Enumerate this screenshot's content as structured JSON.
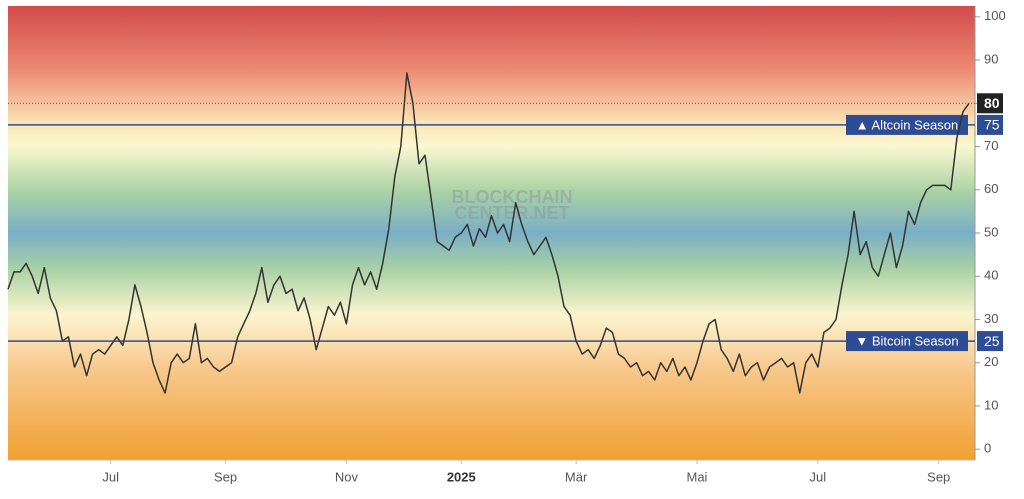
{
  "chart_data": {
    "type": "line",
    "watermark": [
      "BLOCKCHAIN",
      "CENTER.NET"
    ],
    "xlim": [
      0,
      160
    ],
    "xticks": [
      {
        "value": 17,
        "label": "Jul"
      },
      {
        "value": 36,
        "label": "Sep"
      },
      {
        "value": 56,
        "label": "Nov"
      },
      {
        "value": 75,
        "label": "2025"
      },
      {
        "value": 94,
        "label": "Mär"
      },
      {
        "value": 114,
        "label": "Mai"
      },
      {
        "value": 134,
        "label": "Jul"
      },
      {
        "value": 154,
        "label": "Sep"
      }
    ],
    "ylim": [
      -2.5,
      102.5
    ],
    "yticks": [
      0,
      10,
      20,
      30,
      40,
      50,
      60,
      70,
      80,
      90,
      100
    ],
    "color": "#333333",
    "values": [
      37,
      41,
      41,
      43,
      40,
      36,
      42,
      35,
      32,
      25,
      26,
      19,
      22,
      17,
      22,
      23,
      22,
      24,
      26,
      24,
      30,
      38,
      33,
      27,
      20,
      16,
      13,
      20,
      22,
      20,
      21,
      29,
      20,
      21,
      19,
      18,
      19,
      20,
      26,
      29,
      32,
      36,
      42,
      34,
      38,
      40,
      36,
      37,
      32,
      35,
      30,
      23,
      28,
      33,
      31,
      34,
      29,
      38,
      42,
      38,
      41,
      37,
      43,
      51,
      63,
      70,
      87,
      80,
      66,
      68,
      58,
      48,
      47,
      46,
      49,
      50,
      52,
      47,
      51,
      49,
      54,
      50,
      52,
      48,
      57,
      52,
      48,
      45,
      47,
      49,
      45,
      40,
      33,
      31,
      25,
      22,
      23,
      21,
      24,
      28,
      27,
      22,
      21,
      19,
      20,
      17,
      18,
      16,
      20,
      18,
      21,
      17,
      19,
      16,
      20,
      25,
      29,
      30,
      23,
      21,
      18,
      22,
      17,
      19,
      20,
      16,
      19,
      20,
      21,
      19,
      20,
      13,
      20,
      22,
      19,
      27,
      28,
      30,
      38,
      45,
      55,
      45,
      48,
      42,
      40,
      45,
      50,
      42,
      47,
      55,
      52,
      57,
      60,
      61,
      61,
      61,
      60,
      72,
      78,
      80
    ],
    "reference_lines": [
      {
        "value": 75,
        "label": "▲ Altcoin Season",
        "color": "#2e4c94"
      },
      {
        "value": 25,
        "label": "▼ Bitcoin Season",
        "color": "#2e4c94"
      }
    ]
  }
}
